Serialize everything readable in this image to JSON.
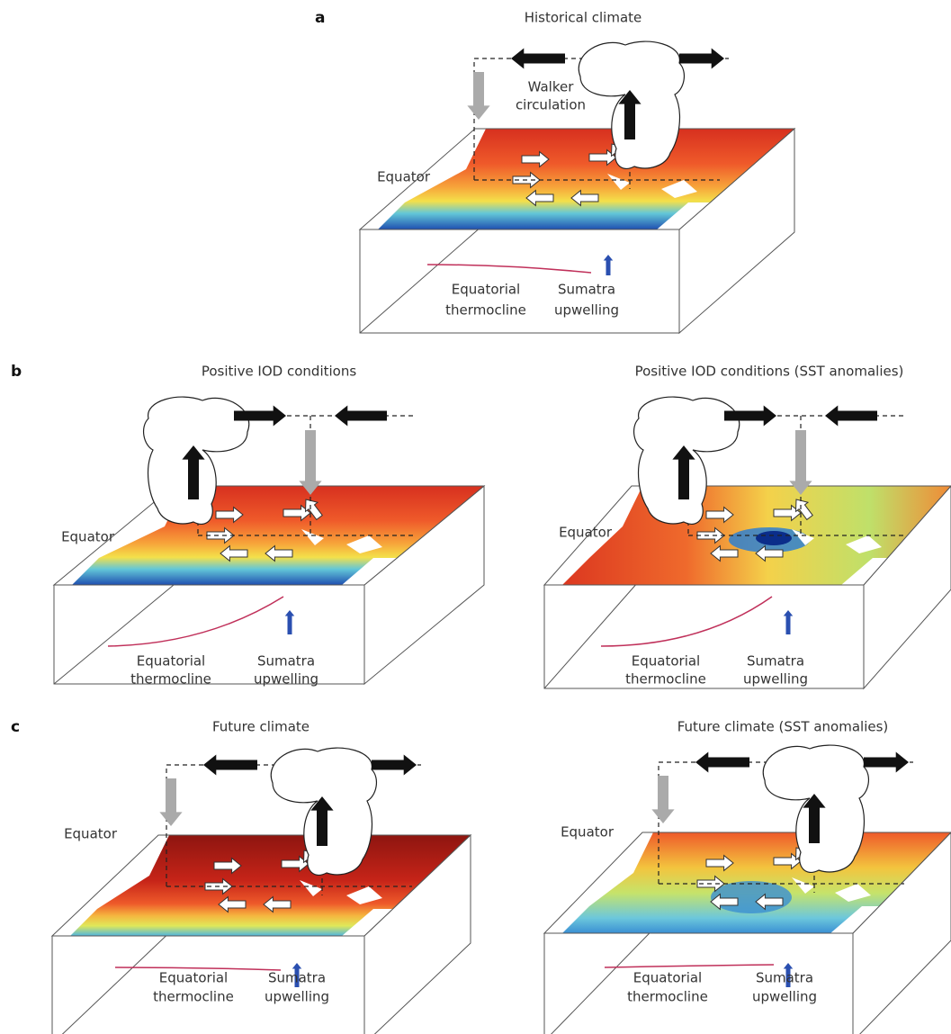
{
  "panels": [
    {
      "label": "a",
      "diagrams": [
        {
          "title": "Historical climate",
          "walker": [
            "Walker",
            "circulation"
          ],
          "equator": "Equator",
          "thermocline": [
            "Equatorial",
            "thermocline"
          ],
          "upwelling": [
            "Sumatra",
            "upwelling"
          ]
        }
      ]
    },
    {
      "label": "b",
      "diagrams": [
        {
          "title": "Positive IOD conditions",
          "equator": "Equator",
          "thermocline": [
            "Equatorial",
            "thermocline"
          ],
          "upwelling": [
            "Sumatra",
            "upwelling"
          ]
        },
        {
          "title": "Positive IOD conditions (SST anomalies)",
          "equator": "Equator",
          "thermocline": [
            "Equatorial",
            "thermocline"
          ],
          "upwelling": [
            "Sumatra",
            "upwelling"
          ]
        }
      ]
    },
    {
      "label": "c",
      "diagrams": [
        {
          "title": "Future climate",
          "equator": "Equator",
          "thermocline": [
            "Equatorial",
            "thermocline"
          ],
          "upwelling": [
            "Sumatra",
            "upwelling"
          ]
        },
        {
          "title": "Future climate (SST anomalies)",
          "equator": "Equator",
          "thermocline": [
            "Equatorial",
            "thermocline"
          ],
          "upwelling": [
            "Sumatra",
            "upwelling"
          ]
        }
      ]
    }
  ]
}
